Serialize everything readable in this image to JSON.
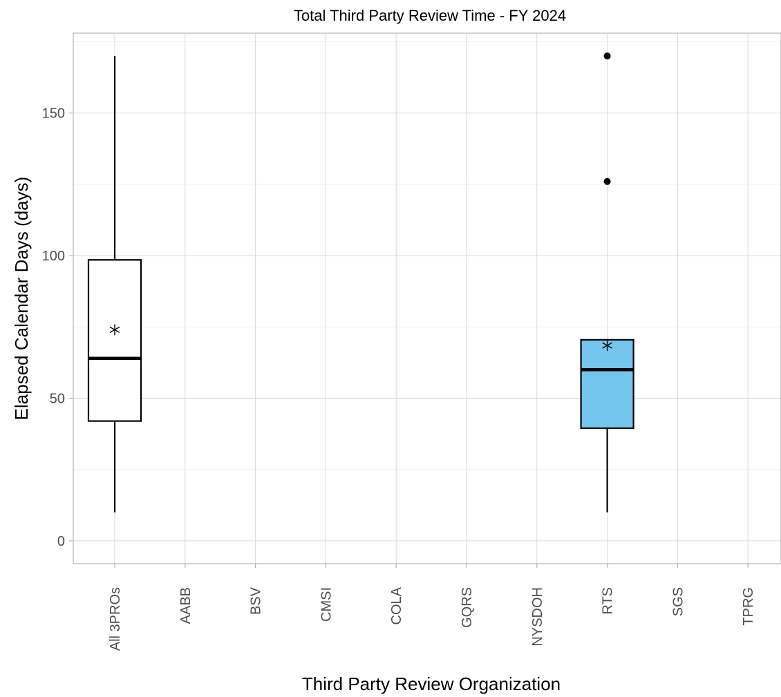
{
  "chart_data": {
    "type": "box",
    "title": "Total Third Party Review Time - FY 2024",
    "xlabel": "Third Party Review Organization",
    "ylabel": "Elapsed Calendar Days (days)",
    "ylim": [
      -8,
      178
    ],
    "yticks": [
      0,
      50,
      100,
      150
    ],
    "grid": true,
    "categories": [
      "All 3PROs",
      "AABB",
      "BSV",
      "CMSI",
      "COLA",
      "GQRS",
      "NYSDOH",
      "RTS",
      "SGS",
      "TPRG"
    ],
    "boxes": [
      {
        "category": "All 3PROs",
        "whisker_low": 10,
        "q1": 42,
        "median": 64,
        "q3": 98.5,
        "whisker_high": 170,
        "mean": 74,
        "outliers": [],
        "fill": "#ffffff"
      },
      {
        "category": "RTS",
        "whisker_low": 10,
        "q1": 39.5,
        "median": 60,
        "q3": 70.5,
        "whisker_high": 70.5,
        "mean": 68.5,
        "outliers": [
          126,
          170
        ],
        "fill": "#74c6ef"
      }
    ]
  }
}
